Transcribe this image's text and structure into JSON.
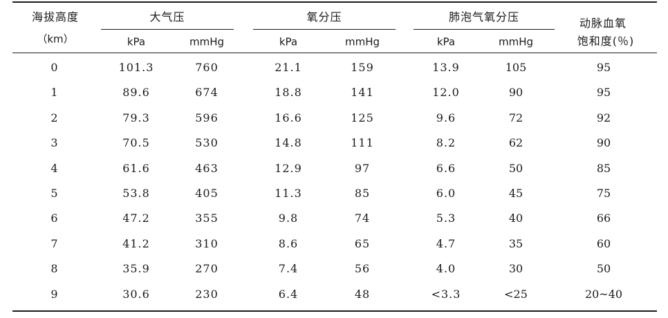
{
  "table": {
    "header": {
      "altitude_line1": "海拔高度",
      "altitude_line2": "（km）",
      "groups": [
        {
          "title": "大气压",
          "units": [
            "kPa",
            "mmHg"
          ]
        },
        {
          "title": "氧分压",
          "units": [
            "kPa",
            "mmHg"
          ]
        },
        {
          "title": "肺泡气氧分压",
          "units": [
            "kPa",
            "mmHg"
          ]
        }
      ],
      "saturation_line1": "动脉血氧",
      "saturation_line2": "饱和度(％)"
    },
    "rows": [
      {
        "altitude": "0",
        "atm_kpa": "101.3",
        "atm_mmhg": "760",
        "o2_kpa": "21.1",
        "o2_mmhg": "159",
        "alv_kpa": "13.9",
        "alv_mmhg": "105",
        "sat": "95"
      },
      {
        "altitude": "1",
        "atm_kpa": "89.6",
        "atm_mmhg": "674",
        "o2_kpa": "18.8",
        "o2_mmhg": "141",
        "alv_kpa": "12.0",
        "alv_mmhg": "90",
        "sat": "95"
      },
      {
        "altitude": "2",
        "atm_kpa": "79.3",
        "atm_mmhg": "596",
        "o2_kpa": "16.6",
        "o2_mmhg": "125",
        "alv_kpa": "9.6",
        "alv_mmhg": "72",
        "sat": "92"
      },
      {
        "altitude": "3",
        "atm_kpa": "70.5",
        "atm_mmhg": "530",
        "o2_kpa": "14.8",
        "o2_mmhg": "111",
        "alv_kpa": "8.2",
        "alv_mmhg": "62",
        "sat": "90"
      },
      {
        "altitude": "4",
        "atm_kpa": "61.6",
        "atm_mmhg": "463",
        "o2_kpa": "12.9",
        "o2_mmhg": "97",
        "alv_kpa": "6.6",
        "alv_mmhg": "50",
        "sat": "85"
      },
      {
        "altitude": "5",
        "atm_kpa": "53.8",
        "atm_mmhg": "405",
        "o2_kpa": "11.3",
        "o2_mmhg": "85",
        "alv_kpa": "6.0",
        "alv_mmhg": "45",
        "sat": "75"
      },
      {
        "altitude": "6",
        "atm_kpa": "47.2",
        "atm_mmhg": "355",
        "o2_kpa": "9.8",
        "o2_mmhg": "74",
        "alv_kpa": "5.3",
        "alv_mmhg": "40",
        "sat": "66"
      },
      {
        "altitude": "7",
        "atm_kpa": "41.2",
        "atm_mmhg": "310",
        "o2_kpa": "8.6",
        "o2_mmhg": "65",
        "alv_kpa": "4.7",
        "alv_mmhg": "35",
        "sat": "60"
      },
      {
        "altitude": "8",
        "atm_kpa": "35.9",
        "atm_mmhg": "270",
        "o2_kpa": "7.4",
        "o2_mmhg": "56",
        "alv_kpa": "4.0",
        "alv_mmhg": "30",
        "sat": "50"
      },
      {
        "altitude": "9",
        "atm_kpa": "30.6",
        "atm_mmhg": "230",
        "o2_kpa": "6.4",
        "o2_mmhg": "48",
        "alv_kpa": "<3.3",
        "alv_mmhg": "<25",
        "sat": "20~40"
      }
    ]
  }
}
